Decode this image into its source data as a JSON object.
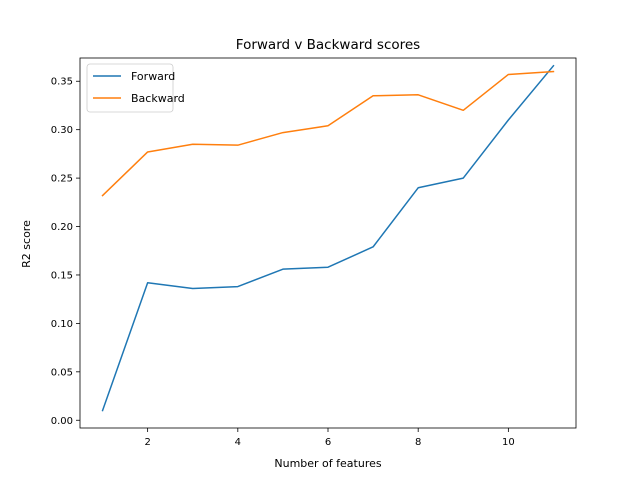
{
  "chart_data": {
    "type": "line",
    "title": "Forward v Backward scores",
    "xlabel": "Number of features",
    "ylabel": "R2 score",
    "x": [
      1,
      2,
      3,
      4,
      5,
      6,
      7,
      8,
      9,
      10,
      11
    ],
    "xlim": [
      0.5,
      11.5
    ],
    "ylim": [
      -0.008,
      0.374
    ],
    "xticks": [
      2,
      4,
      6,
      8,
      10
    ],
    "yticks": [
      0.0,
      0.05,
      0.1,
      0.15,
      0.2,
      0.25,
      0.3,
      0.35
    ],
    "xtick_labels": [
      "2",
      "4",
      "6",
      "8",
      "10"
    ],
    "ytick_labels": [
      "0.00",
      "0.05",
      "0.10",
      "0.15",
      "0.20",
      "0.25",
      "0.30",
      "0.35"
    ],
    "grid": false,
    "legend_position": "top-left",
    "series": [
      {
        "name": "Forward",
        "color": "#1f77b4",
        "values": [
          0.01,
          0.142,
          0.136,
          0.138,
          0.156,
          0.158,
          0.179,
          0.24,
          0.25,
          0.31,
          0.366
        ]
      },
      {
        "name": "Backward",
        "color": "#ff7f0e",
        "values": [
          0.232,
          0.277,
          0.285,
          0.284,
          0.297,
          0.304,
          0.335,
          0.336,
          0.32,
          0.357,
          0.36
        ]
      }
    ]
  }
}
